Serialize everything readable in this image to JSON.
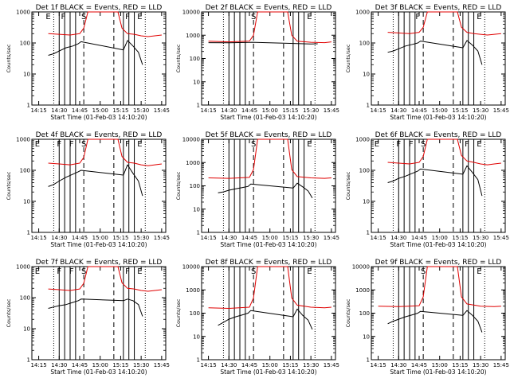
{
  "figure": {
    "xlabel": "Start Time (01-Feb-03 14:10:20)",
    "ylabel": "Counts/sec",
    "x_tick_labels": [
      "14:15",
      "14:30",
      "14:45",
      "15:00",
      "15:15",
      "15:30",
      "15:45"
    ],
    "y_tick_labels": [
      "1",
      "10",
      "100",
      "1000",
      "10000"
    ]
  },
  "series_colors": {
    "events": "#000000",
    "lld": "#e00000"
  },
  "chart_data": [
    {
      "type": "line",
      "title": "Det 1f BLACK = Events, RED = LLD",
      "ylim": [
        1,
        1000
      ],
      "xlim": [
        "14:10",
        "15:48"
      ],
      "y_scale": "log",
      "grid": false,
      "flag_labels": [
        "E",
        "F",
        "S",
        "F",
        "E"
      ],
      "flag_times": [
        "14:22",
        "14:33",
        "14:48",
        "15:20",
        "15:29"
      ],
      "solid_lines": [
        "14:30",
        "14:34",
        "14:38",
        "14:42",
        "15:17",
        "15:21",
        "15:25"
      ],
      "dotted_lines": [
        "14:26",
        "15:33"
      ],
      "dashed_lines": [
        "14:48",
        "15:10"
      ],
      "series": [
        {
          "name": "LLD",
          "color": "#e00000",
          "x": [
            "14:22",
            "14:30",
            "14:38",
            "14:45",
            "14:48",
            "14:51",
            "15:13",
            "15:16",
            "15:20",
            "15:25",
            "15:30",
            "15:35",
            "15:40",
            "15:45"
          ],
          "values": [
            200,
            190,
            180,
            200,
            300,
            1000,
            1000,
            300,
            200,
            190,
            170,
            160,
            170,
            180
          ]
        },
        {
          "name": "Events",
          "color": "#000000",
          "x": [
            "14:22",
            "14:26",
            "14:30",
            "14:35",
            "14:40",
            "14:44",
            "14:46",
            "15:17",
            "15:20",
            "15:24",
            "15:28",
            "15:31"
          ],
          "values": [
            40,
            45,
            55,
            70,
            80,
            95,
            110,
            60,
            120,
            80,
            50,
            20
          ]
        }
      ]
    },
    {
      "type": "line",
      "title": "Det 2f BLACK = Events, RED = LLD",
      "ylim": [
        1,
        10000
      ],
      "xlim": [
        "14:10",
        "15:48"
      ],
      "y_scale": "log",
      "grid": false,
      "flag_labels": [
        "S",
        "E"
      ],
      "flag_times": [
        "14:48",
        "15:29"
      ],
      "solid_lines": [
        "14:30",
        "14:34",
        "14:38",
        "14:42",
        "15:17",
        "15:21",
        "15:25"
      ],
      "dotted_lines": [
        "14:26",
        "15:33"
      ],
      "dashed_lines": [
        "14:48",
        "15:10"
      ],
      "series": [
        {
          "name": "LLD",
          "color": "#e00000",
          "x": [
            "14:15",
            "14:30",
            "14:45",
            "14:48",
            "14:51",
            "15:13",
            "15:16",
            "15:20",
            "15:30",
            "15:40",
            "15:45"
          ],
          "values": [
            550,
            520,
            560,
            1000,
            10000,
            10000,
            1000,
            550,
            500,
            480,
            520
          ]
        },
        {
          "name": "Events",
          "color": "#000000",
          "x": [
            "14:15",
            "14:30",
            "14:45",
            "14:47",
            "15:20",
            "15:30",
            "15:35"
          ],
          "values": [
            480,
            470,
            490,
            500,
            440,
            420,
            430
          ]
        }
      ]
    },
    {
      "type": "line",
      "title": "Det 3f BLACK = Events, RED = LLD",
      "ylim": [
        1,
        1000
      ],
      "xlim": [
        "14:10",
        "15:48"
      ],
      "y_scale": "log",
      "grid": false,
      "flag_labels": [
        "F",
        "E"
      ],
      "flag_times": [
        "14:44",
        "15:29"
      ],
      "solid_lines": [
        "14:30",
        "14:34",
        "14:38",
        "14:42",
        "15:17",
        "15:21",
        "15:25"
      ],
      "dotted_lines": [
        "14:26",
        "15:33"
      ],
      "dashed_lines": [
        "14:48",
        "15:10"
      ],
      "series": [
        {
          "name": "LLD",
          "color": "#e00000",
          "x": [
            "14:22",
            "14:30",
            "14:38",
            "14:45",
            "14:48",
            "14:51",
            "15:13",
            "15:16",
            "15:20",
            "15:25",
            "15:30",
            "15:35",
            "15:40",
            "15:45"
          ],
          "values": [
            220,
            210,
            200,
            220,
            320,
            1000,
            1000,
            320,
            220,
            200,
            190,
            180,
            190,
            200
          ]
        },
        {
          "name": "Events",
          "color": "#000000",
          "x": [
            "14:22",
            "14:26",
            "14:30",
            "14:35",
            "14:40",
            "14:44",
            "14:46",
            "15:17",
            "15:20",
            "15:24",
            "15:28",
            "15:31"
          ],
          "values": [
            50,
            55,
            65,
            80,
            90,
            100,
            115,
            70,
            120,
            85,
            55,
            20
          ]
        }
      ]
    },
    {
      "type": "line",
      "title": "Det 4f BLACK = Events, RED = LLD",
      "ylim": [
        1,
        1000
      ],
      "xlim": [
        "14:10",
        "15:48"
      ],
      "y_scale": "log",
      "grid": false,
      "flag_labels": [
        "E",
        "F",
        "F",
        "S",
        "F",
        "E"
      ],
      "flag_times": [
        "14:14",
        "14:30",
        "14:39",
        "14:48",
        "15:20",
        "15:29"
      ],
      "solid_lines": [
        "14:30",
        "14:34",
        "14:38",
        "14:42",
        "15:17",
        "15:21",
        "15:25"
      ],
      "dotted_lines": [
        "14:26",
        "15:33"
      ],
      "dashed_lines": [
        "14:48",
        "15:10"
      ],
      "series": [
        {
          "name": "LLD",
          "color": "#e00000",
          "x": [
            "14:22",
            "14:30",
            "14:38",
            "14:45",
            "14:48",
            "14:51",
            "15:13",
            "15:16",
            "15:20",
            "15:25",
            "15:30",
            "15:35",
            "15:40",
            "15:45"
          ],
          "values": [
            170,
            160,
            150,
            170,
            260,
            1000,
            1000,
            280,
            180,
            170,
            150,
            140,
            150,
            160
          ]
        },
        {
          "name": "Events",
          "color": "#000000",
          "x": [
            "14:22",
            "14:26",
            "14:30",
            "14:35",
            "14:40",
            "14:44",
            "14:46",
            "15:17",
            "15:20",
            "15:24",
            "15:28",
            "15:31"
          ],
          "values": [
            30,
            35,
            45,
            60,
            75,
            90,
            100,
            70,
            150,
            80,
            45,
            15
          ]
        }
      ]
    },
    {
      "type": "line",
      "title": "Det 5f BLACK = Events, RED = LLD",
      "ylim": [
        1,
        10000
      ],
      "xlim": [
        "14:10",
        "15:48"
      ],
      "y_scale": "log",
      "grid": false,
      "flag_labels": [
        "S",
        "E"
      ],
      "flag_times": [
        "14:48",
        "15:29"
      ],
      "solid_lines": [
        "14:30",
        "14:34",
        "14:38",
        "14:42",
        "15:17",
        "15:21",
        "15:25"
      ],
      "dotted_lines": [
        "14:26",
        "15:33"
      ],
      "dashed_lines": [
        "14:48",
        "15:10"
      ],
      "series": [
        {
          "name": "LLD",
          "color": "#e00000",
          "x": [
            "14:15",
            "14:30",
            "14:45",
            "14:48",
            "14:51",
            "15:13",
            "15:16",
            "15:20",
            "15:30",
            "15:40",
            "15:45"
          ],
          "values": [
            220,
            210,
            230,
            500,
            10000,
            10000,
            500,
            250,
            220,
            210,
            220
          ]
        },
        {
          "name": "Events",
          "color": "#000000",
          "x": [
            "14:22",
            "14:26",
            "14:30",
            "14:35",
            "14:40",
            "14:44",
            "14:46",
            "15:17",
            "15:20",
            "15:24",
            "15:28",
            "15:31"
          ],
          "values": [
            50,
            55,
            65,
            75,
            85,
            95,
            120,
            80,
            130,
            90,
            60,
            30
          ]
        }
      ]
    },
    {
      "type": "line",
      "title": "Det 6f BLACK = Events, RED = LLD",
      "ylim": [
        1,
        1000
      ],
      "xlim": [
        "14:10",
        "15:48"
      ],
      "y_scale": "log",
      "grid": false,
      "flag_labels": [
        "E",
        "F",
        "F",
        "S",
        "F",
        "E"
      ],
      "flag_times": [
        "14:14",
        "14:30",
        "14:39",
        "14:48",
        "15:20",
        "15:29"
      ],
      "solid_lines": [
        "14:30",
        "14:34",
        "14:38",
        "14:42",
        "15:17",
        "15:21",
        "15:25"
      ],
      "dotted_lines": [
        "14:26",
        "15:33"
      ],
      "dashed_lines": [
        "14:48",
        "15:10"
      ],
      "series": [
        {
          "name": "LLD",
          "color": "#e00000",
          "x": [
            "14:22",
            "14:30",
            "14:38",
            "14:45",
            "14:48",
            "14:51",
            "15:13",
            "15:16",
            "15:20",
            "15:25",
            "15:30",
            "15:35",
            "15:40",
            "15:45"
          ],
          "values": [
            180,
            170,
            160,
            180,
            280,
            1000,
            1000,
            300,
            200,
            180,
            160,
            150,
            160,
            170
          ]
        },
        {
          "name": "Events",
          "color": "#000000",
          "x": [
            "14:22",
            "14:26",
            "14:30",
            "14:35",
            "14:40",
            "14:44",
            "14:46",
            "15:17",
            "15:20",
            "15:24",
            "15:28",
            "15:31"
          ],
          "values": [
            40,
            45,
            55,
            65,
            80,
            95,
            110,
            75,
            140,
            85,
            50,
            15
          ]
        }
      ]
    },
    {
      "type": "line",
      "title": "Det 7f BLACK = Events, RED = LLD",
      "ylim": [
        1,
        1000
      ],
      "xlim": [
        "14:10",
        "15:48"
      ],
      "y_scale": "log",
      "grid": false,
      "flag_labels": [
        "E",
        "F",
        "F",
        "S",
        "F",
        "E"
      ],
      "flag_times": [
        "14:14",
        "14:30",
        "14:39",
        "14:48",
        "15:20",
        "15:29"
      ],
      "solid_lines": [
        "14:30",
        "14:34",
        "14:38",
        "14:42",
        "15:17",
        "15:21",
        "15:25"
      ],
      "dotted_lines": [
        "14:26",
        "15:33"
      ],
      "dashed_lines": [
        "14:48",
        "15:10"
      ],
      "series": [
        {
          "name": "LLD",
          "color": "#e00000",
          "x": [
            "14:22",
            "14:30",
            "14:38",
            "14:45",
            "14:48",
            "14:51",
            "15:13",
            "15:16",
            "15:20",
            "15:25",
            "15:30",
            "15:35",
            "15:40",
            "15:45"
          ],
          "values": [
            190,
            180,
            170,
            190,
            290,
            1000,
            1000,
            300,
            200,
            190,
            170,
            160,
            170,
            180
          ]
        },
        {
          "name": "Events",
          "color": "#000000",
          "x": [
            "14:22",
            "14:26",
            "14:30",
            "14:35",
            "14:40",
            "14:44",
            "14:46",
            "15:17",
            "15:20",
            "15:24",
            "15:28",
            "15:31"
          ],
          "values": [
            45,
            50,
            55,
            60,
            70,
            80,
            90,
            80,
            90,
            80,
            60,
            25
          ]
        }
      ]
    },
    {
      "type": "line",
      "title": "Det 8f BLACK = Events, RED = LLD",
      "ylim": [
        1,
        10000
      ],
      "xlim": [
        "14:10",
        "15:48"
      ],
      "y_scale": "log",
      "grid": false,
      "flag_labels": [
        "S",
        "E"
      ],
      "flag_times": [
        "14:48",
        "15:29"
      ],
      "solid_lines": [
        "14:30",
        "14:34",
        "14:38",
        "14:42",
        "15:17",
        "15:21",
        "15:25"
      ],
      "dotted_lines": [
        "14:26",
        "15:33"
      ],
      "dashed_lines": [
        "14:48",
        "15:10"
      ],
      "series": [
        {
          "name": "LLD",
          "color": "#e00000",
          "x": [
            "14:15",
            "14:30",
            "14:45",
            "14:48",
            "14:51",
            "15:13",
            "15:16",
            "15:20",
            "15:30",
            "15:40",
            "15:45"
          ],
          "values": [
            170,
            160,
            180,
            450,
            10000,
            10000,
            450,
            220,
            180,
            170,
            180
          ]
        },
        {
          "name": "Events",
          "color": "#000000",
          "x": [
            "14:22",
            "14:26",
            "14:30",
            "14:35",
            "14:40",
            "14:44",
            "14:46",
            "15:17",
            "15:20",
            "15:24",
            "15:28",
            "15:31"
          ],
          "values": [
            30,
            40,
            55,
            70,
            85,
            100,
            130,
            70,
            150,
            80,
            50,
            20
          ]
        }
      ]
    },
    {
      "type": "line",
      "title": "Det 9f BLACK = Events, RED = LLD",
      "ylim": [
        1,
        10000
      ],
      "xlim": [
        "14:10",
        "15:48"
      ],
      "y_scale": "log",
      "grid": false,
      "flag_labels": [
        "S",
        "E"
      ],
      "flag_times": [
        "14:48",
        "15:29"
      ],
      "solid_lines": [
        "14:30",
        "14:34",
        "14:38",
        "14:42",
        "15:17",
        "15:21",
        "15:25"
      ],
      "dotted_lines": [
        "14:26",
        "15:33"
      ],
      "dashed_lines": [
        "14:48",
        "15:10"
      ],
      "series": [
        {
          "name": "LLD",
          "color": "#e00000",
          "x": [
            "14:15",
            "14:30",
            "14:45",
            "14:48",
            "14:51",
            "15:13",
            "15:16",
            "15:20",
            "15:30",
            "15:40",
            "15:45"
          ],
          "values": [
            200,
            190,
            210,
            500,
            10000,
            10000,
            500,
            250,
            200,
            190,
            200
          ]
        },
        {
          "name": "Events",
          "color": "#000000",
          "x": [
            "14:22",
            "14:26",
            "14:30",
            "14:35",
            "14:40",
            "14:44",
            "14:46",
            "15:17",
            "15:20",
            "15:24",
            "15:28",
            "15:31"
          ],
          "values": [
            35,
            45,
            55,
            70,
            85,
            100,
            120,
            80,
            130,
            80,
            45,
            15
          ]
        }
      ]
    }
  ]
}
